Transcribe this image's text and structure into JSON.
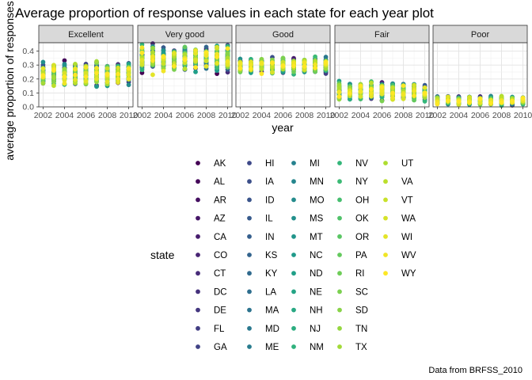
{
  "chart_data": {
    "type": "scatter",
    "title": "Average proportion of response values in each state for each year plot",
    "xlabel": "year",
    "ylabel": "average proportion of responses",
    "caption": "Data from BRFSS_2010",
    "facets": [
      "Excellent",
      "Very good",
      "Good",
      "Fair",
      "Poor"
    ],
    "x": [
      2002,
      2003,
      2004,
      2005,
      2006,
      2007,
      2008,
      2009,
      2010
    ],
    "x_ticks": [
      "2002",
      "2004",
      "2006",
      "2008",
      "2010"
    ],
    "y_ticks": [
      "0.0",
      "0.1",
      "0.2",
      "0.3",
      "0.4"
    ],
    "xlim": [
      2001.6,
      2010.4
    ],
    "ylim": [
      0,
      0.46
    ],
    "grid": true,
    "legend": {
      "title": "state",
      "placement": "bottom"
    },
    "series_palette": "viridis",
    "states": [
      "AK",
      "AL",
      "AR",
      "AZ",
      "CA",
      "CO",
      "CT",
      "DC",
      "DE",
      "FL",
      "GA",
      "HI",
      "IA",
      "ID",
      "IL",
      "IN",
      "KS",
      "KY",
      "LA",
      "MA",
      "MD",
      "ME",
      "MI",
      "MN",
      "MO",
      "MS",
      "MT",
      "NC",
      "ND",
      "NE",
      "NH",
      "NJ",
      "NM",
      "NV",
      "NY",
      "OH",
      "OK",
      "OR",
      "PA",
      "RI",
      "SC",
      "SD",
      "TN",
      "TX",
      "UT",
      "VA",
      "VT",
      "WA",
      "WI",
      "WV",
      "WY"
    ],
    "value_ranges": {
      "Excellent": [
        0.17,
        0.3
      ],
      "Very good": [
        0.27,
        0.42
      ],
      "Good": [
        0.25,
        0.34
      ],
      "Fair": [
        0.06,
        0.16
      ],
      "Poor": [
        0.02,
        0.07
      ]
    }
  }
}
